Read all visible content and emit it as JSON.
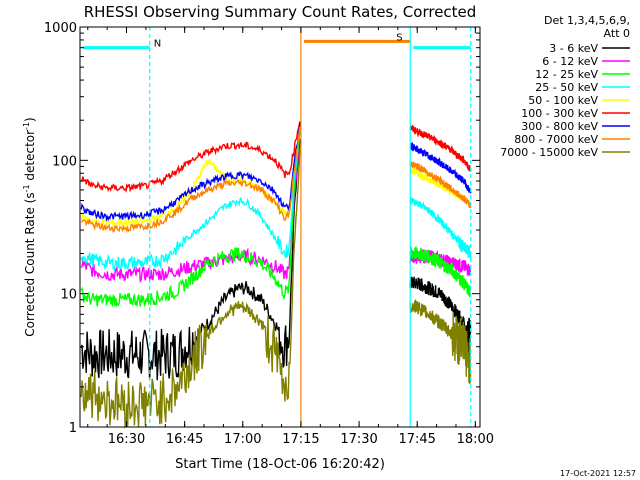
{
  "chart_data": {
    "type": "line",
    "title": "RHESSI Observing Summary Count Rates, Corrected",
    "xlabel": "Start Time (18-Oct-06 16:20:42)",
    "ylabel_main": "Corrected Count Rate (s",
    "ylabel_sup1": "-1",
    "ylabel_mid": " detector",
    "ylabel_sup2": "-1",
    "ylabel_end": ")",
    "y_scale": "log",
    "ylim": [
      1,
      1000
    ],
    "xlim_minutes": [
      16.3,
      18.02
    ],
    "x_ticks": [
      {
        "t": 16.5,
        "label": "16:30"
      },
      {
        "t": 16.75,
        "label": "16:45"
      },
      {
        "t": 17.0,
        "label": "17:00"
      },
      {
        "t": 17.25,
        "label": "17:15"
      },
      {
        "t": 17.5,
        "label": "17:30"
      },
      {
        "t": 17.75,
        "label": "17:45"
      },
      {
        "t": 18.0,
        "label": "18:00"
      }
    ],
    "y_ticks": [
      {
        "v": 1,
        "label": "1"
      },
      {
        "v": 10,
        "label": "10"
      },
      {
        "v": 100,
        "label": "100"
      },
      {
        "v": 1000,
        "label": "1000"
      }
    ],
    "legend_title": [
      "Det 1,3,4,5,6,9,",
      "Att 0"
    ],
    "legend_position": "right",
    "series": [
      {
        "name": "3 - 6 keV",
        "color": "#000000",
        "x": [
          16.3,
          16.35,
          16.42,
          16.5,
          16.58,
          16.65,
          16.72,
          16.78,
          16.85,
          16.92,
          16.98,
          17.02,
          17.08,
          17.14,
          17.18,
          17.2,
          17.22,
          17.25,
          17.72,
          17.75,
          17.8,
          17.85,
          17.9,
          17.95,
          17.98
        ],
        "y": [
          4,
          3.5,
          3.5,
          3.5,
          3.5,
          3.5,
          3.6,
          4.5,
          6,
          9,
          11,
          11,
          9,
          6,
          4,
          5,
          40,
          180,
          12,
          12,
          11,
          10,
          8,
          6,
          4
        ]
      },
      {
        "name": "6 - 12 keV",
        "color": "#ff00ff",
        "x": [
          16.3,
          16.35,
          16.42,
          16.5,
          16.58,
          16.65,
          16.72,
          16.78,
          16.85,
          16.92,
          16.98,
          17.02,
          17.08,
          17.14,
          17.18,
          17.2,
          17.22,
          17.25,
          17.72,
          17.75,
          17.8,
          17.85,
          17.9,
          17.95,
          17.98
        ],
        "y": [
          17,
          15,
          14,
          14,
          14,
          14,
          15,
          16,
          17,
          18,
          19,
          19,
          18,
          16,
          14,
          15,
          50,
          190,
          19,
          19,
          19,
          18,
          17,
          16,
          15
        ]
      },
      {
        "name": "12 - 25 keV",
        "color": "#00ff00",
        "x": [
          16.3,
          16.35,
          16.42,
          16.5,
          16.58,
          16.65,
          16.72,
          16.78,
          16.85,
          16.92,
          16.98,
          17.02,
          17.08,
          17.14,
          17.18,
          17.2,
          17.22,
          17.25,
          17.72,
          17.75,
          17.8,
          17.85,
          17.9,
          17.95,
          17.98
        ],
        "y": [
          10,
          9,
          9,
          9,
          9,
          9.5,
          10.5,
          13,
          17,
          19,
          20,
          19,
          17,
          13,
          10,
          11,
          60,
          200,
          20,
          20,
          19,
          17,
          15,
          12,
          10
        ]
      },
      {
        "name": "25 - 50 keV",
        "color": "#00ffff",
        "x": [
          16.3,
          16.35,
          16.42,
          16.5,
          16.58,
          16.65,
          16.72,
          16.78,
          16.85,
          16.92,
          16.98,
          17.02,
          17.08,
          17.14,
          17.18,
          17.2,
          17.22,
          17.25,
          17.72,
          17.75,
          17.8,
          17.85,
          17.9,
          17.95,
          17.98
        ],
        "y": [
          20,
          18,
          17,
          17,
          17,
          18,
          22,
          28,
          35,
          45,
          50,
          48,
          38,
          26,
          20,
          22,
          70,
          210,
          50,
          48,
          42,
          35,
          28,
          22,
          20
        ]
      },
      {
        "name": "50 - 100 keV",
        "color": "#ffff00",
        "x": [
          16.3,
          16.35,
          16.42,
          16.5,
          16.58,
          16.65,
          16.72,
          16.78,
          16.85,
          16.92,
          16.98,
          17.02,
          17.08,
          17.14,
          17.18,
          17.2,
          17.22,
          17.25,
          17.72,
          17.75,
          17.8,
          17.85,
          17.9,
          17.95,
          17.98
        ],
        "y": [
          38,
          35,
          34,
          34,
          35,
          38,
          45,
          60,
          100,
          75,
          70,
          68,
          60,
          48,
          40,
          42,
          90,
          210,
          85,
          80,
          72,
          65,
          58,
          52,
          46
        ]
      },
      {
        "name": "100 - 300 keV",
        "color": "#ff0000",
        "x": [
          16.3,
          16.35,
          16.42,
          16.5,
          16.58,
          16.65,
          16.72,
          16.78,
          16.85,
          16.92,
          16.98,
          17.02,
          17.08,
          17.14,
          17.18,
          17.2,
          17.22,
          17.25,
          17.72,
          17.75,
          17.8,
          17.85,
          17.9,
          17.95,
          17.98
        ],
        "y": [
          75,
          65,
          62,
          62,
          64,
          70,
          85,
          100,
          115,
          128,
          130,
          128,
          118,
          100,
          78,
          80,
          120,
          220,
          175,
          165,
          150,
          135,
          118,
          100,
          85
        ]
      },
      {
        "name": "300 - 800 keV",
        "color": "#0000ff",
        "x": [
          16.3,
          16.35,
          16.42,
          16.5,
          16.58,
          16.65,
          16.72,
          16.78,
          16.85,
          16.92,
          16.98,
          17.02,
          17.08,
          17.14,
          17.18,
          17.2,
          17.22,
          17.25,
          17.72,
          17.75,
          17.8,
          17.85,
          17.9,
          17.95,
          17.98
        ],
        "y": [
          45,
          40,
          38,
          38,
          39,
          42,
          50,
          60,
          68,
          75,
          78,
          76,
          70,
          58,
          44,
          46,
          90,
          210,
          130,
          120,
          108,
          95,
          82,
          70,
          58
        ]
      },
      {
        "name": "800 - 7000 keV",
        "color": "#ff8000",
        "x": [
          16.3,
          16.35,
          16.42,
          16.5,
          16.58,
          16.65,
          16.72,
          16.78,
          16.85,
          16.92,
          16.98,
          17.02,
          17.08,
          17.14,
          17.18,
          17.2,
          17.22,
          17.25,
          17.72,
          17.75,
          17.8,
          17.85,
          17.9,
          17.95,
          17.98
        ],
        "y": [
          36,
          33,
          31,
          31,
          32,
          35,
          42,
          52,
          60,
          66,
          68,
          67,
          60,
          48,
          37,
          39,
          80,
          200,
          95,
          90,
          80,
          70,
          60,
          52,
          45
        ]
      },
      {
        "name": "7000 - 15000 keV",
        "color": "#808000",
        "x": [
          16.3,
          16.35,
          16.42,
          16.5,
          16.58,
          16.65,
          16.72,
          16.78,
          16.85,
          16.92,
          16.98,
          17.02,
          17.08,
          17.14,
          17.18,
          17.2,
          17.22,
          17.25,
          17.72,
          17.75,
          17.8,
          17.85,
          17.9,
          17.95,
          17.98
        ],
        "y": [
          2,
          1.8,
          1.6,
          1.5,
          1.5,
          1.6,
          2,
          3,
          5,
          7,
          8,
          7.5,
          6,
          3.5,
          2,
          2.5,
          20,
          150,
          8,
          8,
          7,
          6,
          5,
          4,
          3
        ]
      }
    ],
    "flags": [
      {
        "label": "N",
        "color": "#00ffff",
        "start": 16.3,
        "end": 16.6,
        "level": 700
      },
      {
        "label": "S",
        "color": "#ff8000",
        "start": 17.25,
        "end": 17.72,
        "level": 780
      },
      {
        "label": "",
        "color": "#00ffff",
        "start": 17.72,
        "end": 17.98,
        "level": 700
      }
    ],
    "vlines": [
      {
        "t": 16.6,
        "color": "#00ffff",
        "dashed": true
      },
      {
        "t": 17.25,
        "color": "#ff8000",
        "dashed": false
      },
      {
        "t": 17.72,
        "color": "#00ffff",
        "dashed": false
      },
      {
        "t": 17.98,
        "color": "#00ffff",
        "dashed": true
      }
    ],
    "footer_date": "17-Oct-2021 12:57"
  }
}
